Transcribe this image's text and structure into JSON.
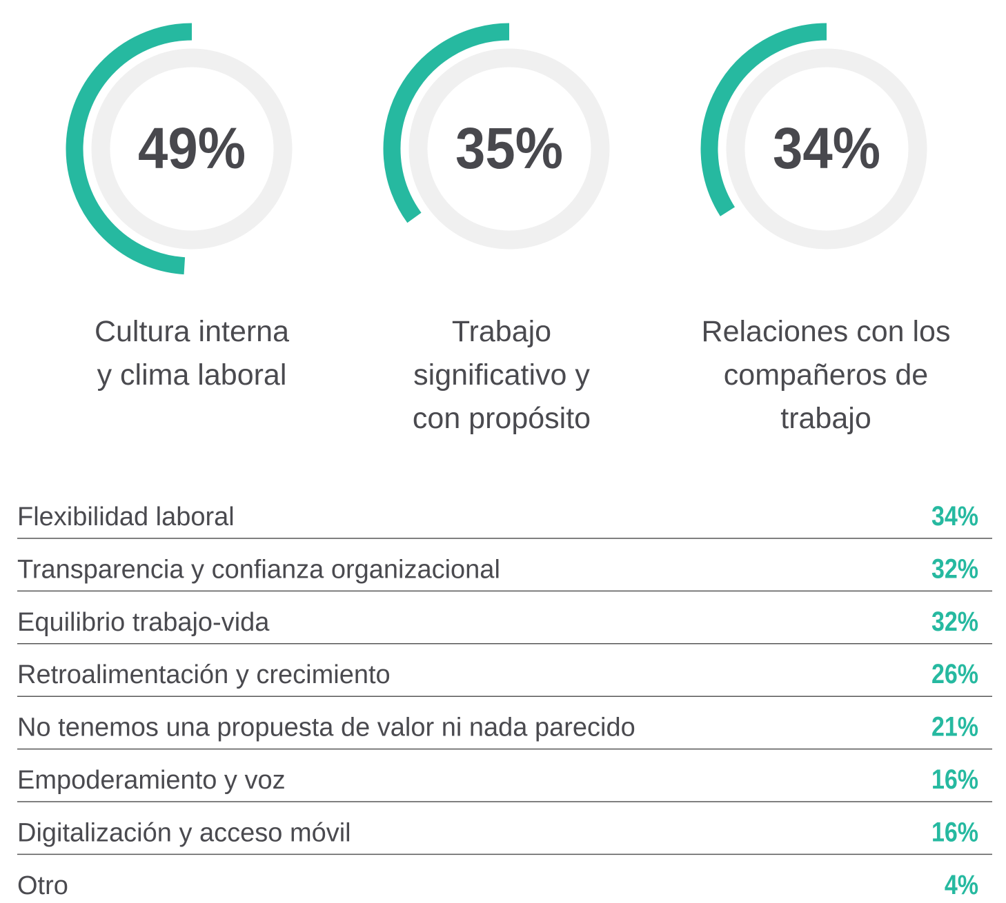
{
  "chart_data": [
    {
      "type": "gauge",
      "categories": [
        "Cultura interna\ny clima laboral",
        "Trabajo\nsignificativo y\ncon propósito",
        "Relaciones con los\ncompañeros de\ntrabajo"
      ],
      "values": [
        49,
        35,
        34
      ],
      "value_labels": [
        "49%",
        "35%",
        "34%"
      ],
      "color": "#26b9a0",
      "track_color": "#f0f0f0"
    },
    {
      "type": "list",
      "categories": [
        "Flexibilidad laboral",
        "Transparencia y confianza organizacional",
        "Equilibrio trabajo-vida",
        "Retroalimentación y crecimiento",
        "No tenemos una propuesta de valor ni nada parecido",
        "Empoderamiento y voz",
        "Digitalización y acceso móvil",
        "Otro"
      ],
      "values": [
        34,
        32,
        32,
        26,
        21,
        16,
        16,
        4
      ],
      "value_labels": [
        "34%",
        "32%",
        "32%",
        "26%",
        "21%",
        "16%",
        "16%",
        "4%"
      ],
      "color": "#26b9a0"
    }
  ]
}
